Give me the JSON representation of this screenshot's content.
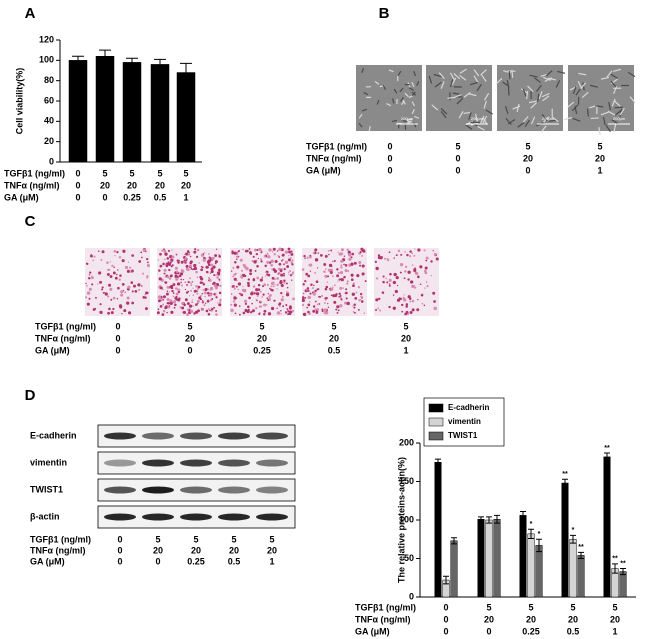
{
  "panel_labels": {
    "a": "A",
    "b": "B",
    "c": "C",
    "d": "D"
  },
  "chart_data": [
    {
      "type": "bar",
      "ylabel": "Cell viability(%)",
      "categories": [
        null,
        null,
        null,
        null,
        null
      ],
      "values": [
        100,
        104,
        98,
        96,
        88
      ],
      "errors": [
        4,
        6,
        4,
        5,
        9
      ],
      "color": "#000000",
      "ylim": [
        0,
        120
      ],
      "yticks": [
        0,
        20,
        40,
        60,
        80,
        100,
        120
      ],
      "treatments": {
        "rows": [
          {
            "label": "TGFβ1 (ng/ml)",
            "values": [
              0,
              5,
              5,
              5,
              5
            ]
          },
          {
            "label": "TNFα (ng/ml)",
            "values": [
              0,
              20,
              20,
              20,
              20
            ]
          },
          {
            "label": "GA (μM)",
            "values": [
              0,
              0,
              0.25,
              0.5,
              1
            ]
          }
        ]
      }
    },
    {
      "type": "bar",
      "ylabel": "The relative proteins-actin(%)",
      "categories": [
        null,
        null,
        null,
        null,
        null
      ],
      "series": [
        {
          "name": "E-cadherin",
          "color": "#000000",
          "values": [
            175,
            101,
            106,
            148,
            182
          ],
          "errors": [
            4,
            3,
            5,
            5,
            5
          ],
          "annotations": [
            null,
            null,
            null,
            "**",
            "**"
          ]
        },
        {
          "name": "vimentin",
          "color": "#d4d4d4",
          "values": [
            22,
            100,
            82,
            75,
            37
          ],
          "errors": [
            5,
            4,
            6,
            5,
            6
          ],
          "annotations": [
            null,
            null,
            "*",
            "*",
            "**"
          ]
        },
        {
          "name": "TWIST1",
          "color": "#666666",
          "values": [
            73,
            101,
            67,
            54,
            33
          ],
          "errors": [
            4,
            5,
            8,
            4,
            4
          ],
          "annotations": [
            null,
            null,
            "*",
            "**",
            "**"
          ]
        }
      ],
      "legend": "top left",
      "ylim": [
        0,
        200
      ],
      "yticks": [
        0,
        50,
        100,
        150,
        200
      ],
      "treatments": {
        "rows": [
          {
            "label": "TGFβ1 (ng/ml)",
            "values": [
              0,
              5,
              5,
              5,
              5
            ]
          },
          {
            "label": "TNFα (ng/ml)",
            "values": [
              0,
              20,
              20,
              20,
              20
            ]
          },
          {
            "label": "GA (μM)",
            "values": [
              0,
              0,
              0.25,
              0.5,
              1
            ]
          }
        ]
      }
    }
  ],
  "panel_b": {
    "scale_bars": [
      "200μm",
      "200μm",
      "200μm",
      "200μm"
    ],
    "treatments": {
      "rows": [
        {
          "label": "TGFβ1 (ng/ml)",
          "values": [
            0,
            5,
            5,
            5
          ]
        },
        {
          "label": "TNFα (ng/ml)",
          "values": [
            0,
            0,
            20,
            20
          ]
        },
        {
          "label": "GA (μM)",
          "values": [
            0,
            0,
            0,
            1
          ]
        }
      ]
    }
  },
  "panel_c": {
    "treatments": {
      "rows": [
        {
          "label": "TGFβ1 (ng/ml)",
          "values": [
            0,
            5,
            5,
            5,
            5
          ]
        },
        {
          "label": "TNFα (ng/ml)",
          "values": [
            0,
            20,
            20,
            20,
            20
          ]
        },
        {
          "label": "GA (μM)",
          "values": [
            0,
            0,
            0.25,
            0.5,
            1
          ]
        }
      ]
    }
  },
  "panel_d": {
    "proteins": [
      "E-cadherin",
      "vimentin",
      "TWIST1",
      "β-actin"
    ],
    "treatments": {
      "rows": [
        {
          "label": "TGFβ1 (ng/ml)",
          "values": [
            0,
            5,
            5,
            5,
            5
          ]
        },
        {
          "label": "TNFα (ng/ml)",
          "values": [
            0,
            20,
            20,
            20,
            20
          ]
        },
        {
          "label": "GA (μM)",
          "values": [
            0,
            0,
            0.25,
            0.5,
            1
          ]
        }
      ]
    }
  }
}
